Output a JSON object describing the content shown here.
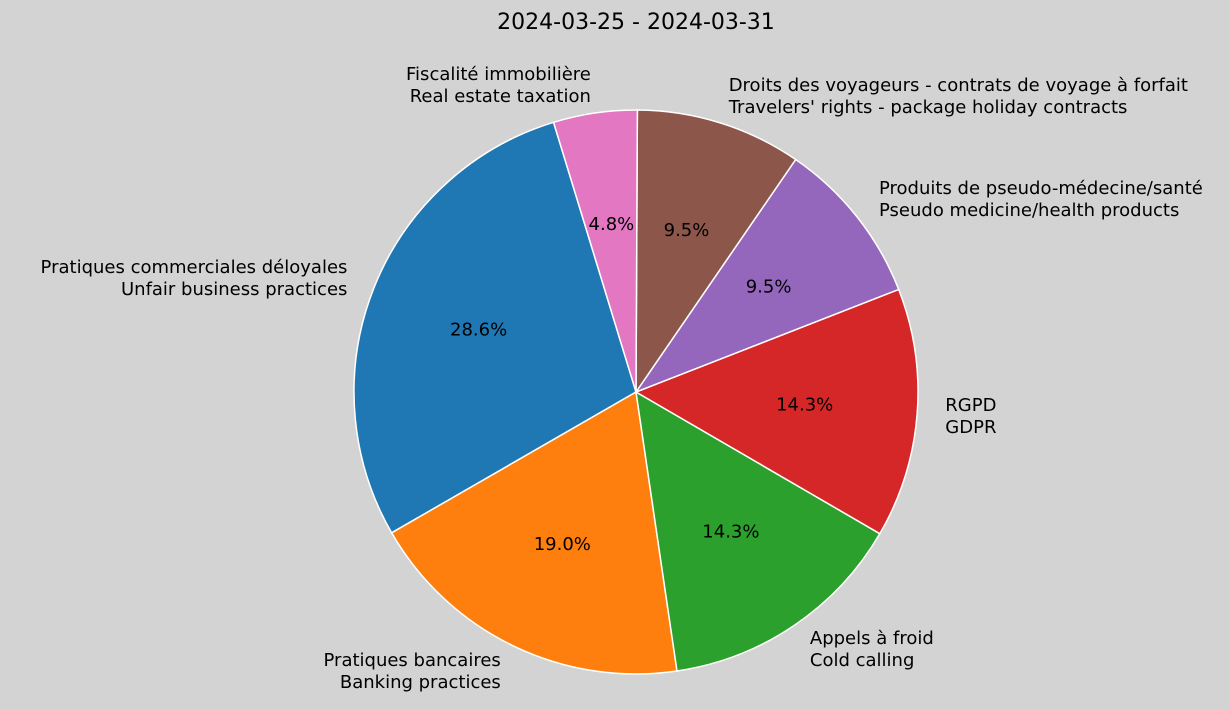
{
  "chart_data": {
    "type": "pie",
    "title": "2024-03-25 - 2024-03-31",
    "slices": [
      {
        "label_fr": "Pratiques commerciales déloyales",
        "label_en": "Unfair business practices",
        "value": 28.6,
        "pct_label": "28.6%",
        "color": "#1f77b4"
      },
      {
        "label_fr": "Pratiques bancaires",
        "label_en": "Banking practices",
        "value": 19.0,
        "pct_label": "19.0%",
        "color": "#ff7f0e"
      },
      {
        "label_fr": "Appels à froid",
        "label_en": "Cold calling",
        "value": 14.3,
        "pct_label": "14.3%",
        "color": "#2ca02c"
      },
      {
        "label_fr": "RGPD",
        "label_en": "GDPR",
        "value": 14.3,
        "pct_label": "14.3%",
        "color": "#d62728"
      },
      {
        "label_fr": "Produits de pseudo-médecine/santé",
        "label_en": "Pseudo medicine/health products",
        "value": 9.5,
        "pct_label": "9.5%",
        "color": "#9467bd"
      },
      {
        "label_fr": "Droits des voyageurs - contrats de voyage à forfait",
        "label_en": "Travelers' rights - package holiday contracts",
        "value": 9.5,
        "pct_label": "9.5%",
        "color": "#8c564b"
      },
      {
        "label_fr": "Fiscalité immobilière",
        "label_en": "Real estate taxation",
        "value": 4.8,
        "pct_label": "4.8%",
        "color": "#e377c2"
      }
    ]
  }
}
